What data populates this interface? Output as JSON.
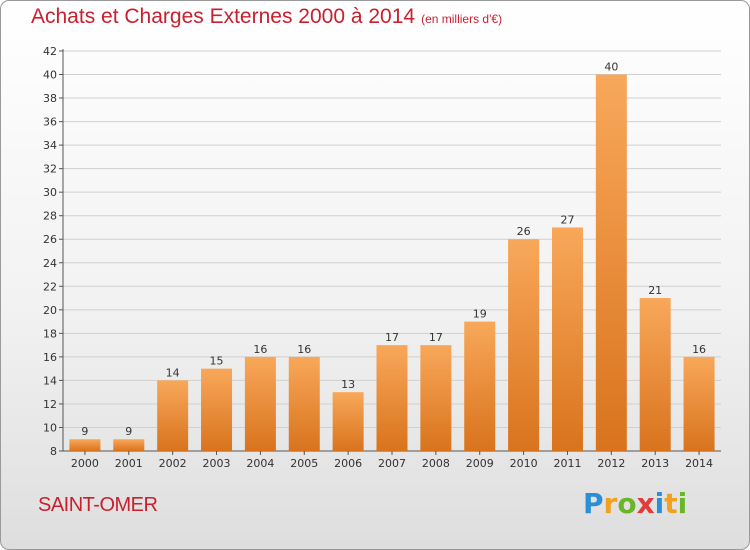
{
  "title": "Achats et Charges Externes 2000 à 2014",
  "subtitle": "(en milliers d'€)",
  "commune": "SAINT-OMER",
  "logo": {
    "text": "Proxiti",
    "parts": [
      {
        "text": "P",
        "color": "#2a8fd6"
      },
      {
        "text": "r",
        "color": "#f0a11f"
      },
      {
        "text": "o",
        "color": "#6bb52a"
      },
      {
        "text": "x",
        "color": "#e23b3b"
      },
      {
        "text": "i",
        "color": "#2a8fd6"
      },
      {
        "text": "t",
        "color": "#f0a11f"
      },
      {
        "text": "i",
        "color": "#6bb52a"
      }
    ]
  },
  "colors": {
    "bar_top": "#f8a85a",
    "bar_bottom": "#d9731d",
    "text_accent": "#c8202f",
    "grid": "#d0d0d0"
  },
  "chart_data": {
    "type": "bar",
    "title": "Achats et Charges Externes 2000 à 2014",
    "subtitle": "(en milliers d'€)",
    "categories": [
      "2000",
      "2001",
      "2002",
      "2003",
      "2004",
      "2005",
      "2006",
      "2007",
      "2008",
      "2009",
      "2010",
      "2011",
      "2012",
      "2013",
      "2014"
    ],
    "values": [
      9,
      9,
      14,
      15,
      16,
      16,
      13,
      17,
      17,
      19,
      26,
      27,
      40,
      21,
      16
    ],
    "ylim": [
      8,
      42
    ],
    "yticks": [
      8,
      10,
      12,
      14,
      16,
      18,
      20,
      22,
      24,
      26,
      28,
      30,
      32,
      34,
      36,
      38,
      40,
      42
    ],
    "xlabel": "",
    "ylabel": "",
    "grid": true,
    "data_labels": true
  }
}
